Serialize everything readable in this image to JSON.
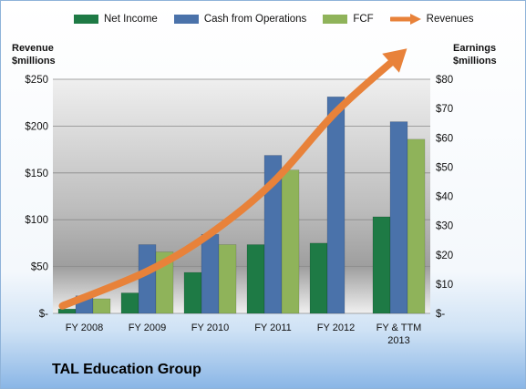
{
  "company": "TAL Education Group",
  "left_axis_title": [
    "Revenue",
    "$millions"
  ],
  "right_axis_title": [
    "Earnings",
    "$millions"
  ],
  "colors": {
    "net_income": "#1e7a45",
    "cash_ops": "#4a72aa",
    "fcf": "#8fb35a",
    "revenues": "#e8823a"
  },
  "chart_data": {
    "type": "bar",
    "categories": [
      "FY 2008",
      "FY 2009",
      "FY 2010",
      "FY 2011",
      "FY 2012",
      "FY & TTM 2013"
    ],
    "series": [
      {
        "name": "Net Income",
        "axis": "right",
        "values": [
          1.5,
          7,
          14,
          23.5,
          24,
          33
        ]
      },
      {
        "name": "Cash from Operations",
        "axis": "right",
        "values": [
          6,
          23.5,
          27,
          54,
          74,
          65.5
        ]
      },
      {
        "name": "FCF",
        "axis": "right",
        "values": [
          5,
          21,
          23.5,
          49,
          0,
          59.5
        ]
      },
      {
        "name": "Revenues",
        "axis": "left",
        "type": "line",
        "values": [
          8,
          45,
          85,
          140,
          215,
          275
        ]
      }
    ],
    "left_axis": {
      "ylim": [
        0,
        250
      ],
      "ticks": [
        "$-",
        "$50",
        "$100",
        "$150",
        "$200",
        "$250"
      ]
    },
    "right_axis": {
      "ylim": [
        0,
        80
      ],
      "ticks": [
        "$-",
        "$10",
        "$20",
        "$30",
        "$40",
        "$50",
        "$60",
        "$70",
        "$80"
      ]
    },
    "legend_position": "top",
    "grid": true
  }
}
